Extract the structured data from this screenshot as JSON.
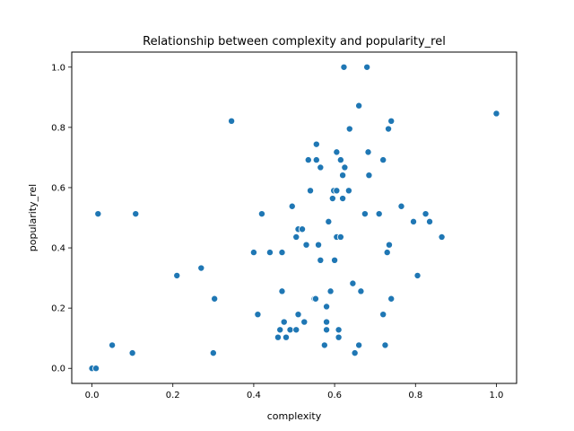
{
  "chart_data": {
    "type": "scatter",
    "title": "Relationship between complexity and popularity_rel",
    "xlabel": "complexity",
    "ylabel": "popularity_rel",
    "xlim": [
      -0.05,
      1.05
    ],
    "ylim": [
      -0.05,
      1.05
    ],
    "xticks": [
      "0.0",
      "0.2",
      "0.4",
      "0.6",
      "0.8",
      "1.0"
    ],
    "yticks": [
      "0.0",
      "0.2",
      "0.4",
      "0.6",
      "0.8",
      "1.0"
    ],
    "grid": false,
    "marker_color": "#1f77b4",
    "points": [
      [
        0.0,
        0.0
      ],
      [
        0.01,
        0.0
      ],
      [
        0.015,
        0.513
      ],
      [
        0.05,
        0.077
      ],
      [
        0.1,
        0.051
      ],
      [
        0.108,
        0.513
      ],
      [
        0.21,
        0.308
      ],
      [
        0.27,
        0.333
      ],
      [
        0.3,
        0.051
      ],
      [
        0.303,
        0.231
      ],
      [
        0.345,
        0.821
      ],
      [
        0.4,
        0.385
      ],
      [
        0.41,
        0.179
      ],
      [
        0.42,
        0.513
      ],
      [
        0.44,
        0.385
      ],
      [
        0.46,
        0.103
      ],
      [
        0.465,
        0.128
      ],
      [
        0.47,
        0.256
      ],
      [
        0.47,
        0.385
      ],
      [
        0.475,
        0.154
      ],
      [
        0.48,
        0.103
      ],
      [
        0.49,
        0.128
      ],
      [
        0.495,
        0.538
      ],
      [
        0.505,
        0.436
      ],
      [
        0.505,
        0.128
      ],
      [
        0.51,
        0.179
      ],
      [
        0.51,
        0.462
      ],
      [
        0.52,
        0.462
      ],
      [
        0.525,
        0.154
      ],
      [
        0.53,
        0.41
      ],
      [
        0.535,
        0.692
      ],
      [
        0.54,
        0.59
      ],
      [
        0.55,
        0.231
      ],
      [
        0.553,
        0.231
      ],
      [
        0.555,
        0.692
      ],
      [
        0.555,
        0.744
      ],
      [
        0.56,
        0.41
      ],
      [
        0.565,
        0.667
      ],
      [
        0.565,
        0.359
      ],
      [
        0.575,
        0.077
      ],
      [
        0.58,
        0.128
      ],
      [
        0.58,
        0.154
      ],
      [
        0.58,
        0.205
      ],
      [
        0.585,
        0.487
      ],
      [
        0.59,
        0.256
      ],
      [
        0.595,
        0.564
      ],
      [
        0.598,
        0.59
      ],
      [
        0.6,
        0.359
      ],
      [
        0.605,
        0.718
      ],
      [
        0.605,
        0.59
      ],
      [
        0.605,
        0.436
      ],
      [
        0.61,
        0.103
      ],
      [
        0.61,
        0.128
      ],
      [
        0.615,
        0.436
      ],
      [
        0.615,
        0.692
      ],
      [
        0.62,
        0.564
      ],
      [
        0.62,
        0.641
      ],
      [
        0.623,
        1.0
      ],
      [
        0.625,
        0.667
      ],
      [
        0.635,
        0.59
      ],
      [
        0.637,
        0.795
      ],
      [
        0.645,
        0.282
      ],
      [
        0.65,
        0.051
      ],
      [
        0.66,
        0.872
      ],
      [
        0.66,
        0.077
      ],
      [
        0.665,
        0.256
      ],
      [
        0.675,
        0.513
      ],
      [
        0.68,
        1.0
      ],
      [
        0.683,
        0.718
      ],
      [
        0.685,
        0.641
      ],
      [
        0.71,
        0.513
      ],
      [
        0.72,
        0.692
      ],
      [
        0.72,
        0.179
      ],
      [
        0.725,
        0.077
      ],
      [
        0.73,
        0.385
      ],
      [
        0.733,
        0.795
      ],
      [
        0.735,
        0.41
      ],
      [
        0.74,
        0.821
      ],
      [
        0.74,
        0.231
      ],
      [
        0.765,
        0.538
      ],
      [
        0.795,
        0.487
      ],
      [
        0.805,
        0.308
      ],
      [
        0.825,
        0.513
      ],
      [
        0.835,
        0.487
      ],
      [
        0.865,
        0.436
      ],
      [
        1.0,
        0.846
      ]
    ]
  }
}
